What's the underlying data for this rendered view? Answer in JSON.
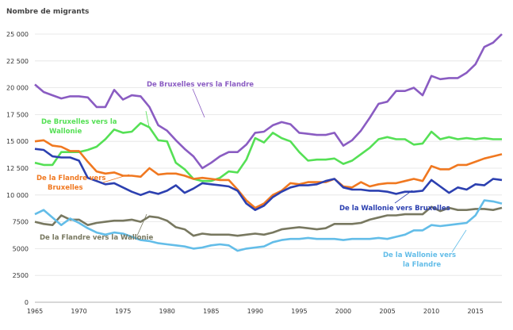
{
  "chart_data": {
    "type": "line",
    "title": "",
    "ylabel": "Nombre de migrants",
    "xlabel": "",
    "xlim": [
      1965,
      2018
    ],
    "ylim": [
      0,
      25000
    ],
    "grid": "horizontal",
    "x_ticks": [
      1965,
      1970,
      1975,
      1980,
      1985,
      1990,
      1995,
      2000,
      2005,
      2010,
      2015
    ],
    "y_ticks": [
      0,
      2500,
      5000,
      7500,
      10000,
      12500,
      15000,
      17500,
      20000,
      22500,
      25000
    ],
    "y_tick_labels": [
      "0",
      "2500",
      "5000",
      "7500",
      "10 000",
      "12 500",
      "15 000",
      "17 500",
      "20 000",
      "22 500",
      "25 000"
    ],
    "x": [
      1965,
      1966,
      1967,
      1968,
      1969,
      1970,
      1971,
      1972,
      1973,
      1974,
      1975,
      1976,
      1977,
      1978,
      1979,
      1980,
      1981,
      1982,
      1983,
      1984,
      1985,
      1986,
      1987,
      1988,
      1989,
      1990,
      1991,
      1992,
      1993,
      1994,
      1995,
      1996,
      1997,
      1998,
      1999,
      2000,
      2001,
      2002,
      2003,
      2004,
      2005,
      2006,
      2007,
      2008,
      2009,
      2010,
      2011,
      2012,
      2013,
      2014,
      2015,
      2016,
      2017,
      2018
    ],
    "series": [
      {
        "name": "De Bruxelles vers la Flandre",
        "color": "#8a5cc2",
        "values": [
          20300,
          19600,
          19300,
          19000,
          19200,
          19200,
          19100,
          18200,
          18200,
          19800,
          18900,
          19300,
          19200,
          18200,
          16500,
          16000,
          15100,
          14300,
          13600,
          12500,
          13000,
          13600,
          14000,
          14000,
          14700,
          15800,
          15900,
          16500,
          16800,
          16600,
          15800,
          15700,
          15600,
          15600,
          15800,
          14600,
          15100,
          16000,
          17200,
          18500,
          18700,
          19700,
          19700,
          20000,
          19300,
          21100,
          20800,
          20900,
          20900,
          21400,
          22200,
          23800,
          24200,
          25000
        ]
      },
      {
        "name": "De Bruxelles vers la Wallonie",
        "color": "#55e055",
        "values": [
          13000,
          12800,
          12800,
          14000,
          14000,
          14000,
          14200,
          14500,
          15200,
          16100,
          15800,
          15900,
          16700,
          16300,
          15100,
          15000,
          13000,
          12400,
          11500,
          11300,
          11300,
          11600,
          12200,
          12100,
          13300,
          15300,
          14900,
          15800,
          15300,
          15000,
          14000,
          13200,
          13300,
          13300,
          13400,
          12900,
          13200,
          13800,
          14400,
          15200,
          15400,
          15200,
          15200,
          14700,
          14800,
          15900,
          15200,
          15400,
          15200,
          15300,
          15200,
          15300,
          15200,
          15200
        ]
      },
      {
        "name": "De la Flandre vers Bruxelles",
        "color": "#f07820",
        "values": [
          15000,
          15100,
          14600,
          14500,
          14100,
          14100,
          13100,
          12200,
          12000,
          12100,
          11800,
          11800,
          11700,
          12500,
          11900,
          12000,
          12000,
          11800,
          11500,
          11600,
          11500,
          11400,
          11400,
          10500,
          9500,
          8800,
          9200,
          10000,
          10400,
          11100,
          11000,
          11200,
          11200,
          11200,
          11500,
          10800,
          10700,
          11200,
          10800,
          11000,
          11100,
          11100,
          11300,
          11500,
          11300,
          12700,
          12400,
          12400,
          12800,
          12800,
          13100,
          13400,
          13600,
          13800
        ]
      },
      {
        "name": "De la Wallonie vers Bruxelles",
        "color": "#2c40b0",
        "values": [
          14300,
          14200,
          13600,
          13500,
          13500,
          13200,
          11600,
          11300,
          11000,
          11100,
          10700,
          10300,
          10000,
          10300,
          10100,
          10400,
          10900,
          10200,
          10600,
          11100,
          11000,
          10900,
          10800,
          10400,
          9200,
          8600,
          9000,
          9800,
          10300,
          10700,
          10900,
          10900,
          11000,
          11300,
          11500,
          10700,
          10500,
          10500,
          10400,
          10400,
          10300,
          10100,
          10300,
          10300,
          10400,
          11400,
          10800,
          10200,
          10700,
          10500,
          11000,
          10900,
          11500,
          11400
        ]
      },
      {
        "name": "De la Flandre vers la Wallonie",
        "color": "#787860",
        "values": [
          7500,
          7300,
          7200,
          8100,
          7700,
          7700,
          7200,
          7400,
          7500,
          7600,
          7600,
          7700,
          7500,
          8000,
          7900,
          7600,
          7000,
          6800,
          6200,
          6400,
          6300,
          6300,
          6300,
          6200,
          6300,
          6400,
          6300,
          6500,
          6800,
          6900,
          7000,
          6900,
          6800,
          6900,
          7300,
          7300,
          7300,
          7400,
          7700,
          7900,
          8100,
          8100,
          8200,
          8200,
          8200,
          8900,
          8500,
          8800,
          8600,
          8600,
          8700,
          8700,
          8600,
          8800
        ]
      },
      {
        "name": "De la Wallonie vers la Flandre",
        "color": "#63bde8",
        "values": [
          8200,
          8600,
          7900,
          7200,
          7800,
          7400,
          6900,
          6500,
          6300,
          6500,
          6400,
          6100,
          5800,
          5700,
          5500,
          5400,
          5300,
          5200,
          5000,
          5100,
          5300,
          5400,
          5300,
          4800,
          5000,
          5100,
          5200,
          5600,
          5800,
          5900,
          5900,
          6000,
          5900,
          5900,
          5900,
          5800,
          5900,
          5900,
          5900,
          6000,
          5900,
          6100,
          6300,
          6700,
          6700,
          7200,
          7100,
          7200,
          7300,
          7400,
          8100,
          9500,
          9400,
          9200
        ]
      }
    ]
  }
}
